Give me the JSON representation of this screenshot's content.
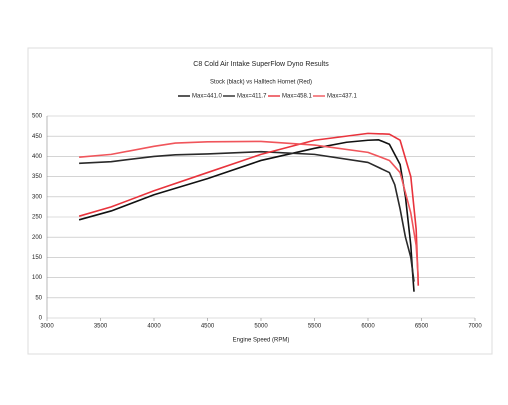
{
  "chart_data": {
    "type": "line",
    "title": "C8 Cold Air Intake SuperFlow Dyno Results",
    "subtitle": "Stock (black) vs Halltech Hornet (Red)",
    "x_label": "Engine Speed (RPM)",
    "xlim": [
      3000,
      7000
    ],
    "xticks": [
      3000,
      3500,
      4000,
      4500,
      5000,
      5500,
      6000,
      6500,
      7000
    ],
    "ylim": [
      0,
      500
    ],
    "yticks": [
      0,
      50,
      100,
      150,
      200,
      250,
      300,
      350,
      400,
      450,
      500
    ],
    "grid": true,
    "series": [
      {
        "name": "Max=441.0",
        "color": "#111111",
        "x": [
          3300,
          3600,
          4000,
          4500,
          5000,
          5500,
          5800,
          6000,
          6100,
          6200,
          6300,
          6350,
          6400,
          6420,
          6430
        ],
        "values": [
          243,
          265,
          305,
          345,
          390,
          420,
          435,
          440,
          441,
          430,
          380,
          300,
          180,
          100,
          65
        ]
      },
      {
        "name": "Max=411.7",
        "color": "#2a2a2a",
        "x": [
          3300,
          3600,
          4000,
          4200,
          4500,
          5000,
          5500,
          6000,
          6200,
          6250,
          6300,
          6350,
          6400,
          6430
        ],
        "values": [
          383,
          387,
          400,
          404,
          406,
          411.7,
          405,
          385,
          360,
          330,
          270,
          200,
          150,
          90
        ]
      },
      {
        "name": "Max=458.1",
        "color": "#e8333c",
        "x": [
          3300,
          3600,
          4000,
          4500,
          5000,
          5500,
          6000,
          6200,
          6300,
          6400,
          6450,
          6470
        ],
        "values": [
          252,
          275,
          315,
          360,
          405,
          440,
          457,
          455,
          440,
          350,
          220,
          80
        ]
      },
      {
        "name": "Max=437.1",
        "color": "#f0555b",
        "x": [
          3300,
          3600,
          4000,
          4200,
          4500,
          5000,
          5500,
          6000,
          6200,
          6300,
          6400,
          6450,
          6470
        ],
        "values": [
          398,
          405,
          425,
          433,
          436,
          437.1,
          428,
          410,
          390,
          360,
          260,
          180,
          100
        ]
      }
    ]
  }
}
